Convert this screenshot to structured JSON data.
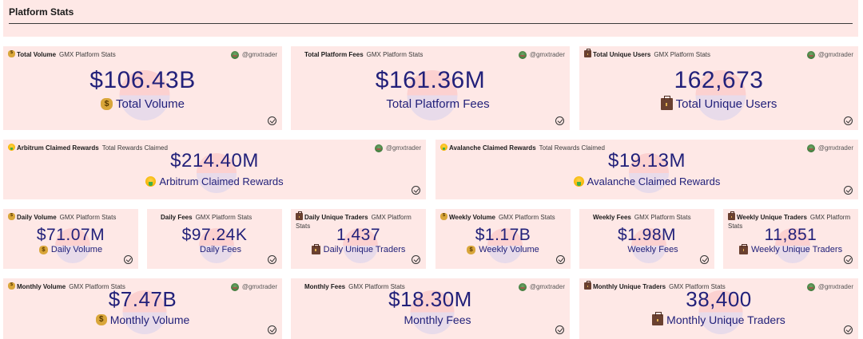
{
  "header": {
    "title": "Platform Stats"
  },
  "author": "@gmxtrader",
  "colors": {
    "card_bg": "#fee8e6",
    "value_text": "#22217a",
    "title_text": "#1a1a1a"
  },
  "cards": [
    {
      "id": "total-volume",
      "icon": "money-bag-icon",
      "title": "Total Volume",
      "subtitle": "GMX Platform Stats",
      "value": "$106.43B",
      "label": "Total Volume",
      "show_author": true
    },
    {
      "id": "total-platform-fees",
      "icon": "credit-card-icon",
      "title": "Total Platform Fees",
      "subtitle": "GMX Platform Stats",
      "value": "$161.36M",
      "label": "Total Platform Fees",
      "show_author": true
    },
    {
      "id": "total-unique-users",
      "icon": "briefcase-icon",
      "title": "Total Unique Users",
      "subtitle": "GMX Platform Stats",
      "value": "162,673",
      "label": "Total Unique Users",
      "show_author": true
    },
    {
      "id": "arbitrum-claimed-rewards",
      "icon": "money-mouth-face-icon",
      "title": "Arbitrum Claimed Rewards",
      "subtitle": "Total Rewards Claimed",
      "value": "$214.40M",
      "label": "Arbitrum Claimed Rewards",
      "show_author": true
    },
    {
      "id": "avalanche-claimed-rewards",
      "icon": "money-mouth-face-icon",
      "title": "Avalanche Claimed Rewards",
      "subtitle": "Total Rewards Claimed",
      "value": "$19.13M",
      "label": "Avalanche Claimed Rewards",
      "show_author": true
    },
    {
      "id": "daily-volume",
      "icon": "money-bag-icon",
      "title": "Daily Volume",
      "subtitle": "GMX Platform Stats",
      "value": "$71.07M",
      "label": "Daily Volume",
      "show_author": false
    },
    {
      "id": "daily-fees",
      "icon": "credit-card-icon",
      "title": "Daily Fees",
      "subtitle": "GMX Platform Stats",
      "value": "$97.24K",
      "label": "Daily Fees",
      "show_author": false
    },
    {
      "id": "daily-unique-traders",
      "icon": "briefcase-icon",
      "title": "Daily Unique Traders",
      "subtitle": "GMX Platform Stats",
      "value": "1,437",
      "label": "Daily Unique Traders",
      "show_author": false
    },
    {
      "id": "weekly-volume",
      "icon": "money-bag-icon",
      "title": "Weekly Volume",
      "subtitle": "GMX Platform Stats",
      "value": "$1.17B",
      "label": "Weekly Volume",
      "show_author": false
    },
    {
      "id": "weekly-fees",
      "icon": "credit-card-icon",
      "title": "Weekly Fees",
      "subtitle": "GMX Platform Stats",
      "value": "$1.98M",
      "label": "Weekly Fees",
      "show_author": false
    },
    {
      "id": "weekly-unique-traders",
      "icon": "briefcase-icon",
      "title": "Weekly Unique Traders",
      "subtitle": "GMX Platform Stats",
      "value": "11,851",
      "label": "Weekly Unique Traders",
      "show_author": false
    },
    {
      "id": "monthly-volume",
      "icon": "money-bag-icon",
      "title": "Monthly Volume",
      "subtitle": "GMX Platform Stats",
      "value": "$7.47B",
      "label": "Monthly Volume",
      "show_author": true
    },
    {
      "id": "monthly-fees",
      "icon": "credit-card-icon",
      "title": "Monthly Fees",
      "subtitle": "GMX Platform Stats",
      "value": "$18.30M",
      "label": "Monthly Fees",
      "show_author": true
    },
    {
      "id": "monthly-unique-traders",
      "icon": "briefcase-icon",
      "title": "Monthly Unique Traders",
      "subtitle": "GMX Platform Stats",
      "value": "38,400",
      "label": "Monthly Unique Traders",
      "show_author": true
    }
  ]
}
